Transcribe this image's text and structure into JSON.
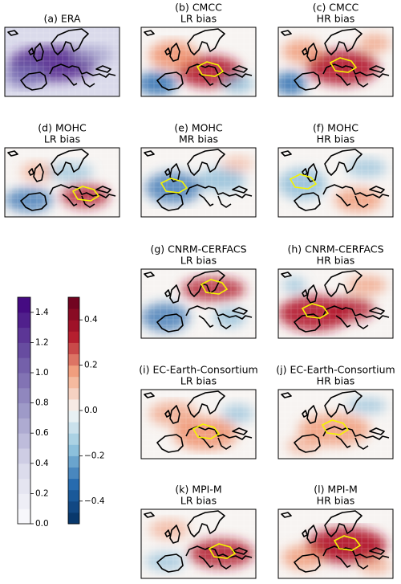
{
  "panels": [
    {
      "title": [
        "(a) ERA"
      ]
    },
    {
      "title": [
        "(b) CMCC",
        "LR bias"
      ]
    },
    {
      "title": [
        "(c) CMCC",
        "HR bias"
      ]
    },
    {
      "title": [
        "(d) MOHC",
        "LR bias"
      ]
    },
    {
      "title": [
        "(e) MOHC",
        "MR bias"
      ]
    },
    {
      "title": [
        "(f) MOHC",
        "HR bias"
      ]
    },
    {
      "title": [
        "(g) CNRM-CERFACS",
        "LR bias"
      ]
    },
    {
      "title": [
        "(h) CNRM-CERFACS",
        "HR bias"
      ]
    },
    {
      "title": [
        "(i) EC-Earth-Consortium",
        "LR bias"
      ]
    },
    {
      "title": [
        "(j) EC-Earth-Consortium",
        "HR bias"
      ]
    },
    {
      "title": [
        "(k) MPI-M",
        "LR bias"
      ]
    },
    {
      "title": [
        "(l) MPI-M",
        "HR bias"
      ]
    }
  ],
  "colorbars": [
    {
      "lim": [
        0,
        1.5
      ],
      "ticks": [
        {
          "value": 0,
          "label": "0.0"
        },
        0.2,
        0.4,
        0.6,
        0.8,
        {
          "value": 1,
          "label": "1.0"
        },
        1.2,
        1.4
      ]
    },
    {
      "lim": [
        -0.5,
        0.5
      ],
      "ticks": [
        {
          "value": -0.4,
          "label": "−0.4"
        },
        {
          "value": -0.2,
          "label": "−0.2"
        },
        {
          "value": 0,
          "label": "0.0"
        },
        0.2,
        0.4
      ]
    }
  ]
}
